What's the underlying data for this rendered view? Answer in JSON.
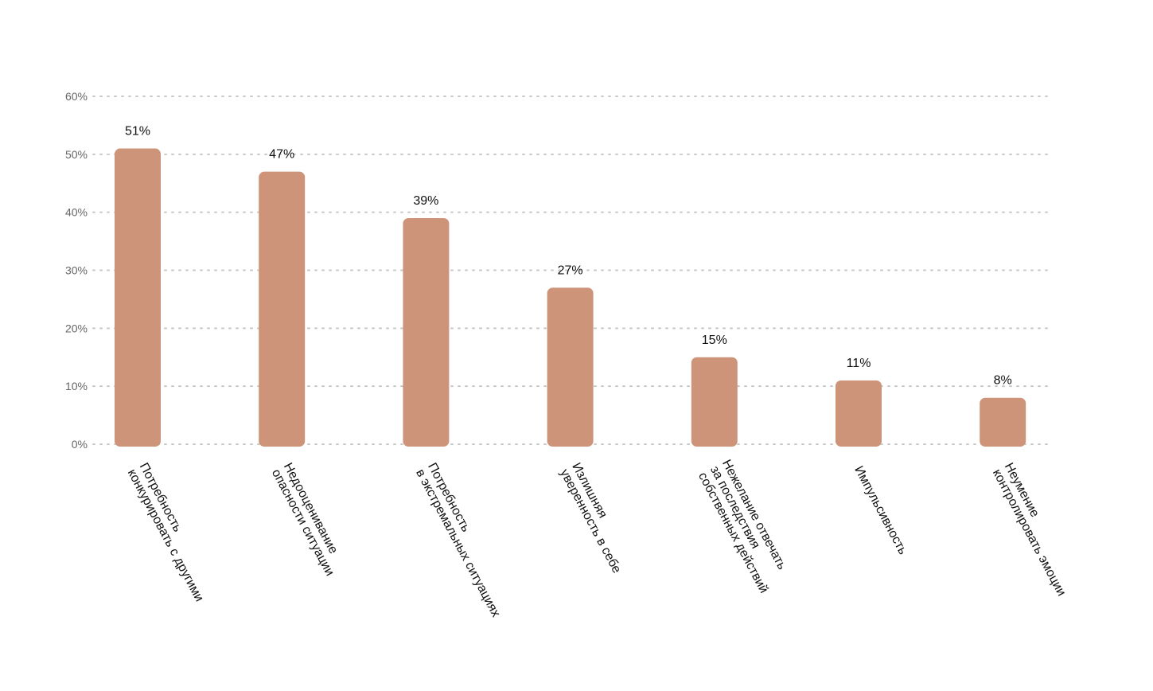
{
  "chart_data": {
    "type": "bar",
    "categories": [
      [
        "Потребность",
        "конкурировать с другими"
      ],
      [
        "Недооценивание",
        "опасности ситуации"
      ],
      [
        "Потребность",
        "в экстремальных ситуациях"
      ],
      [
        "Излишняя",
        "уверенность в себе"
      ],
      [
        "Нежелание отвечать",
        "за последствия",
        "собственных действий"
      ],
      [
        "Импульсивность"
      ],
      [
        "Неумение",
        "контролировать эмоции"
      ]
    ],
    "values": [
      51,
      47,
      39,
      27,
      15,
      11,
      8
    ],
    "value_labels": [
      "51%",
      "47%",
      "39%",
      "27%",
      "15%",
      "11%",
      "8%"
    ],
    "yticks": [
      0,
      10,
      20,
      30,
      40,
      50,
      60
    ],
    "ytick_labels": [
      "0%",
      "10%",
      "20%",
      "30%",
      "40%",
      "50%",
      "60%"
    ],
    "ylim": [
      0,
      60
    ],
    "title": "",
    "xlabel": "",
    "ylabel": "",
    "grid": true,
    "legend": "none",
    "bar_color": "#cd9479"
  }
}
